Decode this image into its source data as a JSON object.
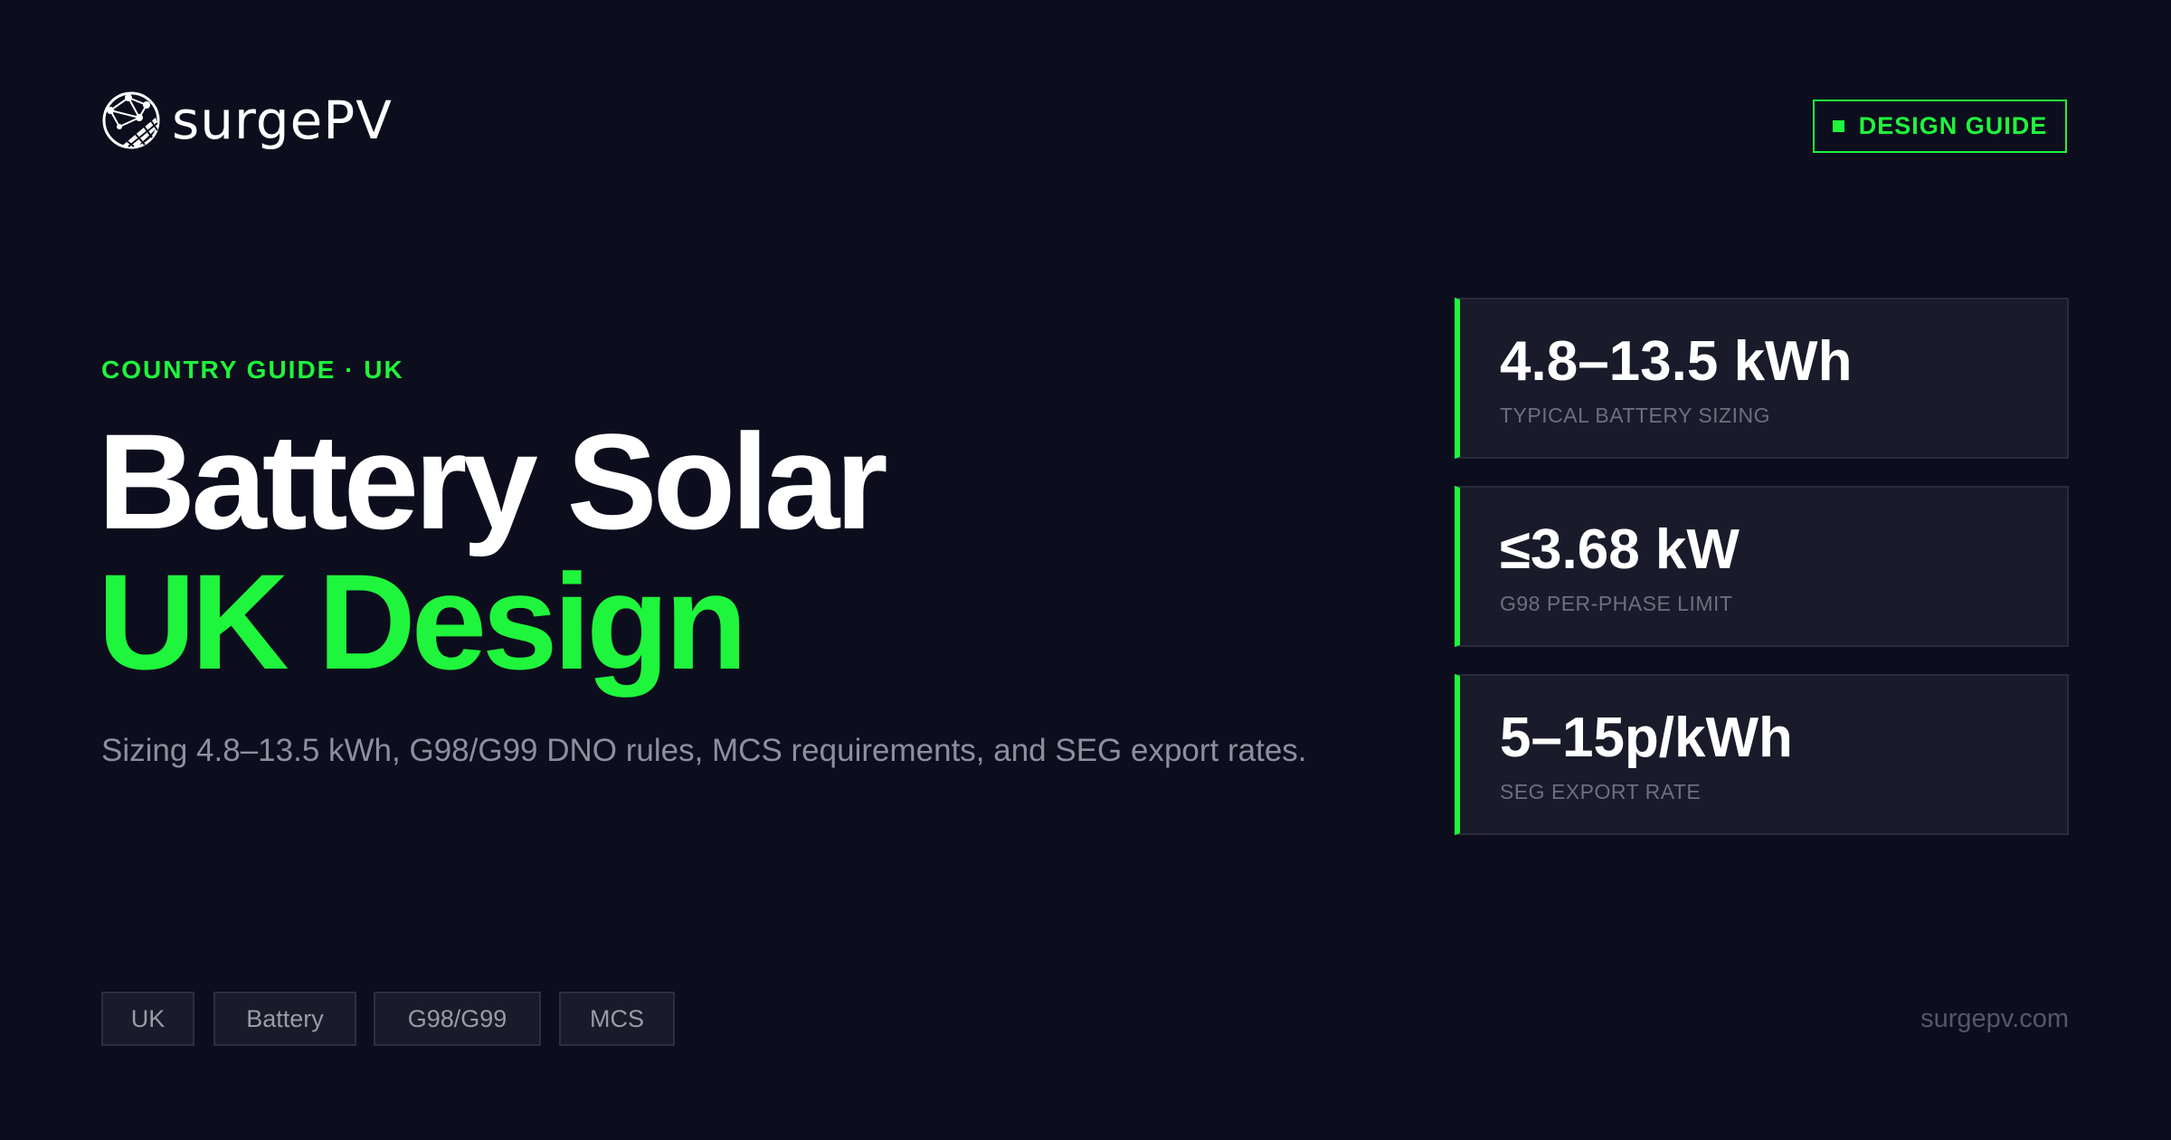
{
  "header": {
    "logo_text": "surgePV",
    "logo_icon": "globe-solar-panel-icon",
    "badge_label": "DESIGN GUIDE"
  },
  "hero": {
    "eyebrow": "COUNTRY GUIDE · UK",
    "title_line1": "Battery Solar",
    "title_line2": "UK Design",
    "subtitle": "Sizing 4.8–13.5 kWh, G98/G99 DNO rules, MCS requirements, and SEG export rates."
  },
  "stats": [
    {
      "value": "4.8–13.5 kWh",
      "label": "TYPICAL BATTERY SIZING"
    },
    {
      "value": "≤3.68 kW",
      "label": "G98 PER-PHASE LIMIT"
    },
    {
      "value": "5–15p/kWh",
      "label": "SEG EXPORT RATE"
    }
  ],
  "tags": [
    "UK",
    "Battery",
    "G98/G99",
    "MCS"
  ],
  "footer": {
    "site": "surgepv.com"
  },
  "colors": {
    "background": "#0d0e1d",
    "accent": "#1ff53c",
    "card": "#1a1b2a"
  }
}
